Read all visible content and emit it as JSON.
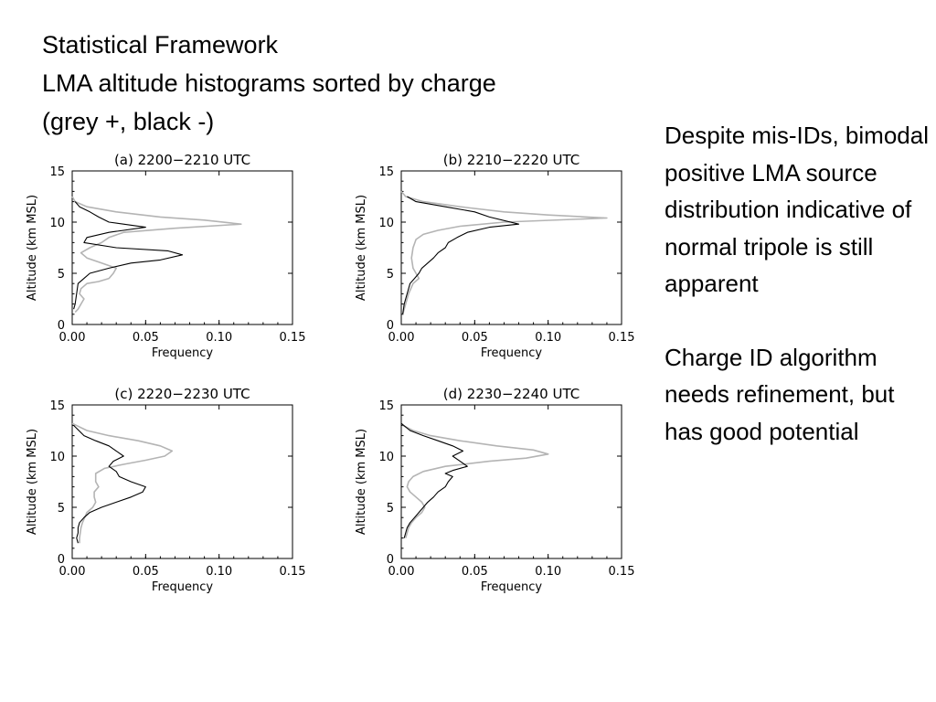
{
  "slide": {
    "title": "Statistical Framework",
    "subtitle": "LMA altitude histograms sorted by charge",
    "subtitle2": "(grey +, black -)",
    "notes": [
      "Despite mis-IDs, bimodal positive LMA source distribution indicative of normal tripole is still apparent",
      "Charge ID algorithm needs refinement, but has good potential"
    ]
  },
  "colors": {
    "positive": "#b4b4b4",
    "negative": "#000000"
  },
  "chart_data": [
    {
      "type": "line",
      "title": "(a) 2200−2210 UTC",
      "xlabel": "Frequency",
      "ylabel": "Altitude (km MSL)",
      "xlim": [
        0,
        0.15
      ],
      "ylim": [
        0,
        15
      ],
      "xticks": [
        "0.00",
        "0.05",
        "0.10",
        "0.15"
      ],
      "yticks": [
        "0",
        "5",
        "10",
        "15"
      ],
      "series": [
        {
          "name": "+",
          "points": [
            [
              0.0,
              12.5
            ],
            [
              0.002,
              12.0
            ],
            [
              0.01,
              11.5
            ],
            [
              0.03,
              11.0
            ],
            [
              0.06,
              10.5
            ],
            [
              0.09,
              10.2
            ],
            [
              0.115,
              9.8
            ],
            [
              0.07,
              9.4
            ],
            [
              0.035,
              9.0
            ],
            [
              0.025,
              8.5
            ],
            [
              0.02,
              8.0
            ],
            [
              0.012,
              7.5
            ],
            [
              0.006,
              7.0
            ],
            [
              0.01,
              6.5
            ],
            [
              0.02,
              6.0
            ],
            [
              0.03,
              5.5
            ],
            [
              0.028,
              5.0
            ],
            [
              0.025,
              4.5
            ],
            [
              0.018,
              4.2
            ],
            [
              0.01,
              4.0
            ],
            [
              0.006,
              3.5
            ],
            [
              0.005,
              3.0
            ],
            [
              0.008,
              2.5
            ],
            [
              0.006,
              2.0
            ],
            [
              0.004,
              1.5
            ],
            [
              0.002,
              1.2
            ]
          ]
        },
        {
          "name": "-",
          "points": [
            [
              0.002,
              12.0
            ],
            [
              0.005,
              11.5
            ],
            [
              0.012,
              11.0
            ],
            [
              0.018,
              10.5
            ],
            [
              0.025,
              10.0
            ],
            [
              0.05,
              9.5
            ],
            [
              0.035,
              9.2
            ],
            [
              0.025,
              9.0
            ],
            [
              0.01,
              8.5
            ],
            [
              0.008,
              8.0
            ],
            [
              0.03,
              7.5
            ],
            [
              0.065,
              7.2
            ],
            [
              0.075,
              6.8
            ],
            [
              0.06,
              6.3
            ],
            [
              0.04,
              6.0
            ],
            [
              0.025,
              5.5
            ],
            [
              0.012,
              5.0
            ],
            [
              0.008,
              4.5
            ],
            [
              0.004,
              4.0
            ],
            [
              0.003,
              3.0
            ],
            [
              0.002,
              2.0
            ],
            [
              0.001,
              1.5
            ]
          ]
        }
      ]
    },
    {
      "type": "line",
      "title": "(b) 2210−2220 UTC",
      "xlabel": "Frequency",
      "ylabel": "Altitude (km MSL)",
      "xlim": [
        0,
        0.15
      ],
      "ylim": [
        0,
        15
      ],
      "xticks": [
        "0.00",
        "0.05",
        "0.10",
        "0.15"
      ],
      "yticks": [
        "0",
        "5",
        "10",
        "15"
      ],
      "series": [
        {
          "name": "+",
          "points": [
            [
              0.0,
              13.0
            ],
            [
              0.003,
              12.5
            ],
            [
              0.015,
              12.0
            ],
            [
              0.04,
              11.5
            ],
            [
              0.07,
              11.0
            ],
            [
              0.1,
              10.7
            ],
            [
              0.14,
              10.4
            ],
            [
              0.07,
              10.0
            ],
            [
              0.04,
              9.6
            ],
            [
              0.025,
              9.2
            ],
            [
              0.015,
              8.8
            ],
            [
              0.01,
              8.3
            ],
            [
              0.008,
              7.5
            ],
            [
              0.007,
              6.5
            ],
            [
              0.008,
              5.5
            ],
            [
              0.01,
              5.0
            ],
            [
              0.012,
              4.5
            ],
            [
              0.008,
              4.0
            ],
            [
              0.005,
              3.0
            ],
            [
              0.003,
              2.0
            ],
            [
              0.001,
              1.0
            ]
          ]
        },
        {
          "name": "-",
          "points": [
            [
              0.004,
              12.5
            ],
            [
              0.01,
              12.0
            ],
            [
              0.03,
              11.5
            ],
            [
              0.05,
              11.0
            ],
            [
              0.06,
              10.5
            ],
            [
              0.08,
              9.8
            ],
            [
              0.06,
              9.5
            ],
            [
              0.045,
              9.0
            ],
            [
              0.038,
              8.5
            ],
            [
              0.032,
              8.0
            ],
            [
              0.03,
              7.5
            ],
            [
              0.025,
              7.0
            ],
            [
              0.022,
              6.5
            ],
            [
              0.018,
              6.0
            ],
            [
              0.014,
              5.5
            ],
            [
              0.012,
              5.0
            ],
            [
              0.009,
              4.5
            ],
            [
              0.006,
              4.0
            ],
            [
              0.004,
              3.0
            ],
            [
              0.002,
              2.0
            ],
            [
              0.001,
              1.0
            ]
          ]
        }
      ]
    },
    {
      "type": "line",
      "title": "(c) 2220−2230 UTC",
      "xlabel": "Frequency",
      "ylabel": "Altitude (km MSL)",
      "xlim": [
        0,
        0.15
      ],
      "ylim": [
        0,
        15
      ],
      "xticks": [
        "0.00",
        "0.05",
        "0.10",
        "0.15"
      ],
      "yticks": [
        "0",
        "5",
        "10",
        "15"
      ],
      "series": [
        {
          "name": "+",
          "points": [
            [
              0.0,
              13.2
            ],
            [
              0.01,
              12.5
            ],
            [
              0.025,
              12.0
            ],
            [
              0.045,
              11.5
            ],
            [
              0.06,
              11.0
            ],
            [
              0.068,
              10.5
            ],
            [
              0.063,
              10.0
            ],
            [
              0.05,
              9.6
            ],
            [
              0.035,
              9.2
            ],
            [
              0.022,
              8.8
            ],
            [
              0.016,
              8.3
            ],
            [
              0.016,
              7.5
            ],
            [
              0.018,
              7.0
            ],
            [
              0.015,
              6.5
            ],
            [
              0.015,
              6.0
            ],
            [
              0.016,
              5.5
            ],
            [
              0.014,
              5.0
            ],
            [
              0.01,
              4.5
            ],
            [
              0.007,
              3.5
            ],
            [
              0.006,
              3.0
            ],
            [
              0.005,
              2.0
            ],
            [
              0.005,
              1.5
            ]
          ]
        },
        {
          "name": "-",
          "points": [
            [
              0.001,
              13.0
            ],
            [
              0.008,
              12.0
            ],
            [
              0.016,
              11.5
            ],
            [
              0.025,
              11.0
            ],
            [
              0.03,
              10.5
            ],
            [
              0.035,
              10.0
            ],
            [
              0.028,
              9.5
            ],
            [
              0.025,
              9.0
            ],
            [
              0.03,
              8.5
            ],
            [
              0.032,
              8.0
            ],
            [
              0.04,
              7.5
            ],
            [
              0.05,
              7.0
            ],
            [
              0.048,
              6.5
            ],
            [
              0.04,
              6.0
            ],
            [
              0.03,
              5.5
            ],
            [
              0.02,
              5.0
            ],
            [
              0.012,
              4.5
            ],
            [
              0.008,
              4.0
            ],
            [
              0.005,
              3.5
            ],
            [
              0.004,
              3.0
            ],
            [
              0.004,
              2.5
            ],
            [
              0.003,
              2.0
            ],
            [
              0.004,
              1.5
            ]
          ]
        }
      ]
    },
    {
      "type": "line",
      "title": "(d) 2230−2240 UTC",
      "xlabel": "Frequency",
      "ylabel": "Altitude (km MSL)",
      "xlim": [
        0,
        0.15
      ],
      "ylim": [
        0,
        15
      ],
      "xticks": [
        "0.00",
        "0.05",
        "0.10",
        "0.15"
      ],
      "yticks": [
        "0",
        "5",
        "10",
        "15"
      ],
      "series": [
        {
          "name": "+",
          "points": [
            [
              0.001,
              13.0
            ],
            [
              0.008,
              12.5
            ],
            [
              0.02,
              12.0
            ],
            [
              0.04,
              11.5
            ],
            [
              0.065,
              11.0
            ],
            [
              0.09,
              10.6
            ],
            [
              0.1,
              10.2
            ],
            [
              0.085,
              9.8
            ],
            [
              0.06,
              9.5
            ],
            [
              0.03,
              9.0
            ],
            [
              0.015,
              8.5
            ],
            [
              0.008,
              8.0
            ],
            [
              0.005,
              7.5
            ],
            [
              0.004,
              7.0
            ],
            [
              0.006,
              6.5
            ],
            [
              0.01,
              6.0
            ],
            [
              0.014,
              5.5
            ],
            [
              0.016,
              5.0
            ],
            [
              0.014,
              4.5
            ],
            [
              0.01,
              4.0
            ],
            [
              0.007,
              3.5
            ],
            [
              0.005,
              3.0
            ],
            [
              0.003,
              2.0
            ]
          ]
        },
        {
          "name": "-",
          "points": [
            [
              0.0,
              13.2
            ],
            [
              0.006,
              12.5
            ],
            [
              0.015,
              12.0
            ],
            [
              0.025,
              11.5
            ],
            [
              0.035,
              11.0
            ],
            [
              0.042,
              10.5
            ],
            [
              0.035,
              10.0
            ],
            [
              0.04,
              9.5
            ],
            [
              0.045,
              9.0
            ],
            [
              0.035,
              8.6
            ],
            [
              0.03,
              8.3
            ],
            [
              0.035,
              8.0
            ],
            [
              0.032,
              7.5
            ],
            [
              0.03,
              7.0
            ],
            [
              0.025,
              6.5
            ],
            [
              0.022,
              6.0
            ],
            [
              0.018,
              5.5
            ],
            [
              0.015,
              5.0
            ],
            [
              0.012,
              4.5
            ],
            [
              0.009,
              4.0
            ],
            [
              0.006,
              3.5
            ],
            [
              0.004,
              3.0
            ],
            [
              0.002,
              2.0
            ]
          ]
        }
      ]
    }
  ]
}
